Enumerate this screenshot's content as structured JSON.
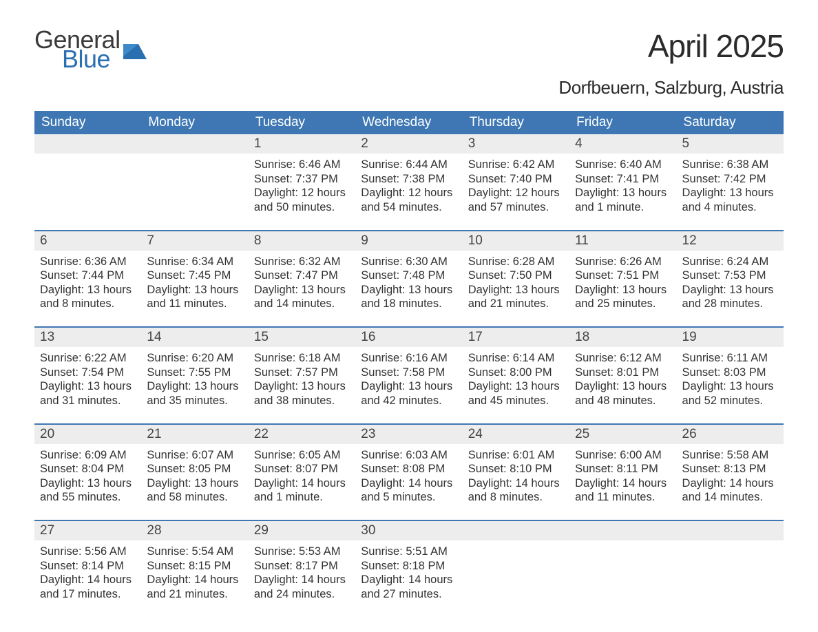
{
  "logo": {
    "text1": "General",
    "text2": "Blue",
    "color_gray": "#3a3a3a",
    "color_blue": "#2a6fb0"
  },
  "title": "April 2025",
  "subtitle": "Dorfbeuern, Salzburg, Austria",
  "header_bg": "#3e77b3",
  "header_fg": "#ffffff",
  "daynum_bg": "#ededed",
  "week_border": "#3e77b3",
  "text_color": "#333333",
  "weekdays": [
    "Sunday",
    "Monday",
    "Tuesday",
    "Wednesday",
    "Thursday",
    "Friday",
    "Saturday"
  ],
  "weeks": [
    [
      {
        "num": "",
        "sunrise": "",
        "sunset": "",
        "daylight": ""
      },
      {
        "num": "",
        "sunrise": "",
        "sunset": "",
        "daylight": ""
      },
      {
        "num": "1",
        "sunrise": "Sunrise: 6:46 AM",
        "sunset": "Sunset: 7:37 PM",
        "daylight": "Daylight: 12 hours and 50 minutes."
      },
      {
        "num": "2",
        "sunrise": "Sunrise: 6:44 AM",
        "sunset": "Sunset: 7:38 PM",
        "daylight": "Daylight: 12 hours and 54 minutes."
      },
      {
        "num": "3",
        "sunrise": "Sunrise: 6:42 AM",
        "sunset": "Sunset: 7:40 PM",
        "daylight": "Daylight: 12 hours and 57 minutes."
      },
      {
        "num": "4",
        "sunrise": "Sunrise: 6:40 AM",
        "sunset": "Sunset: 7:41 PM",
        "daylight": "Daylight: 13 hours and 1 minute."
      },
      {
        "num": "5",
        "sunrise": "Sunrise: 6:38 AM",
        "sunset": "Sunset: 7:42 PM",
        "daylight": "Daylight: 13 hours and 4 minutes."
      }
    ],
    [
      {
        "num": "6",
        "sunrise": "Sunrise: 6:36 AM",
        "sunset": "Sunset: 7:44 PM",
        "daylight": "Daylight: 13 hours and 8 minutes."
      },
      {
        "num": "7",
        "sunrise": "Sunrise: 6:34 AM",
        "sunset": "Sunset: 7:45 PM",
        "daylight": "Daylight: 13 hours and 11 minutes."
      },
      {
        "num": "8",
        "sunrise": "Sunrise: 6:32 AM",
        "sunset": "Sunset: 7:47 PM",
        "daylight": "Daylight: 13 hours and 14 minutes."
      },
      {
        "num": "9",
        "sunrise": "Sunrise: 6:30 AM",
        "sunset": "Sunset: 7:48 PM",
        "daylight": "Daylight: 13 hours and 18 minutes."
      },
      {
        "num": "10",
        "sunrise": "Sunrise: 6:28 AM",
        "sunset": "Sunset: 7:50 PM",
        "daylight": "Daylight: 13 hours and 21 minutes."
      },
      {
        "num": "11",
        "sunrise": "Sunrise: 6:26 AM",
        "sunset": "Sunset: 7:51 PM",
        "daylight": "Daylight: 13 hours and 25 minutes."
      },
      {
        "num": "12",
        "sunrise": "Sunrise: 6:24 AM",
        "sunset": "Sunset: 7:53 PM",
        "daylight": "Daylight: 13 hours and 28 minutes."
      }
    ],
    [
      {
        "num": "13",
        "sunrise": "Sunrise: 6:22 AM",
        "sunset": "Sunset: 7:54 PM",
        "daylight": "Daylight: 13 hours and 31 minutes."
      },
      {
        "num": "14",
        "sunrise": "Sunrise: 6:20 AM",
        "sunset": "Sunset: 7:55 PM",
        "daylight": "Daylight: 13 hours and 35 minutes."
      },
      {
        "num": "15",
        "sunrise": "Sunrise: 6:18 AM",
        "sunset": "Sunset: 7:57 PM",
        "daylight": "Daylight: 13 hours and 38 minutes."
      },
      {
        "num": "16",
        "sunrise": "Sunrise: 6:16 AM",
        "sunset": "Sunset: 7:58 PM",
        "daylight": "Daylight: 13 hours and 42 minutes."
      },
      {
        "num": "17",
        "sunrise": "Sunrise: 6:14 AM",
        "sunset": "Sunset: 8:00 PM",
        "daylight": "Daylight: 13 hours and 45 minutes."
      },
      {
        "num": "18",
        "sunrise": "Sunrise: 6:12 AM",
        "sunset": "Sunset: 8:01 PM",
        "daylight": "Daylight: 13 hours and 48 minutes."
      },
      {
        "num": "19",
        "sunrise": "Sunrise: 6:11 AM",
        "sunset": "Sunset: 8:03 PM",
        "daylight": "Daylight: 13 hours and 52 minutes."
      }
    ],
    [
      {
        "num": "20",
        "sunrise": "Sunrise: 6:09 AM",
        "sunset": "Sunset: 8:04 PM",
        "daylight": "Daylight: 13 hours and 55 minutes."
      },
      {
        "num": "21",
        "sunrise": "Sunrise: 6:07 AM",
        "sunset": "Sunset: 8:05 PM",
        "daylight": "Daylight: 13 hours and 58 minutes."
      },
      {
        "num": "22",
        "sunrise": "Sunrise: 6:05 AM",
        "sunset": "Sunset: 8:07 PM",
        "daylight": "Daylight: 14 hours and 1 minute."
      },
      {
        "num": "23",
        "sunrise": "Sunrise: 6:03 AM",
        "sunset": "Sunset: 8:08 PM",
        "daylight": "Daylight: 14 hours and 5 minutes."
      },
      {
        "num": "24",
        "sunrise": "Sunrise: 6:01 AM",
        "sunset": "Sunset: 8:10 PM",
        "daylight": "Daylight: 14 hours and 8 minutes."
      },
      {
        "num": "25",
        "sunrise": "Sunrise: 6:00 AM",
        "sunset": "Sunset: 8:11 PM",
        "daylight": "Daylight: 14 hours and 11 minutes."
      },
      {
        "num": "26",
        "sunrise": "Sunrise: 5:58 AM",
        "sunset": "Sunset: 8:13 PM",
        "daylight": "Daylight: 14 hours and 14 minutes."
      }
    ],
    [
      {
        "num": "27",
        "sunrise": "Sunrise: 5:56 AM",
        "sunset": "Sunset: 8:14 PM",
        "daylight": "Daylight: 14 hours and 17 minutes."
      },
      {
        "num": "28",
        "sunrise": "Sunrise: 5:54 AM",
        "sunset": "Sunset: 8:15 PM",
        "daylight": "Daylight: 14 hours and 21 minutes."
      },
      {
        "num": "29",
        "sunrise": "Sunrise: 5:53 AM",
        "sunset": "Sunset: 8:17 PM",
        "daylight": "Daylight: 14 hours and 24 minutes."
      },
      {
        "num": "30",
        "sunrise": "Sunrise: 5:51 AM",
        "sunset": "Sunset: 8:18 PM",
        "daylight": "Daylight: 14 hours and 27 minutes."
      },
      {
        "num": "",
        "sunrise": "",
        "sunset": "",
        "daylight": ""
      },
      {
        "num": "",
        "sunrise": "",
        "sunset": "",
        "daylight": ""
      },
      {
        "num": "",
        "sunrise": "",
        "sunset": "",
        "daylight": ""
      }
    ]
  ]
}
